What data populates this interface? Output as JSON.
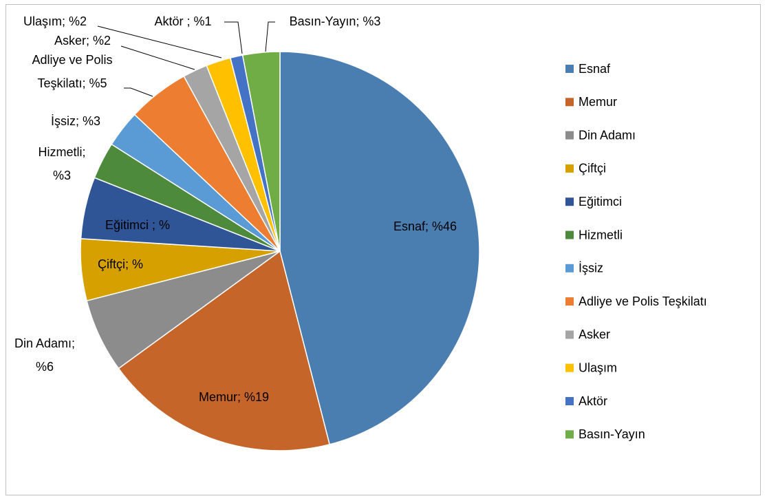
{
  "chart_data": {
    "type": "pie",
    "categories": [
      "Esnaf",
      "Memur",
      "Din Adamı",
      "Çiftçi",
      "Eğitimci",
      "Hizmetli",
      "İşsiz",
      "Adliye ve Polis Teşkilatı",
      "Asker",
      "Ulaşım",
      "Aktör",
      "Basın-Yayın"
    ],
    "values": [
      46,
      19,
      6,
      5,
      5,
      3,
      3,
      5,
      2,
      2,
      1,
      3
    ],
    "value_labels": [
      [
        "Esnaf; %46"
      ],
      [
        "Memur; %19"
      ],
      [
        "Din Adamı;",
        "%6"
      ],
      [
        "Çiftçi; %"
      ],
      [
        "Eğitimci ; %"
      ],
      [
        "Hizmetli;",
        "%3"
      ],
      [
        "İşsiz; %3"
      ],
      [
        "Adliye ve Polis",
        "Teşkilatı; %5"
      ],
      [
        "Asker; %2"
      ],
      [
        "Ulaşım; %2"
      ],
      [
        "Aktör ; %1"
      ],
      [
        "Basın-Yayın; %3"
      ]
    ],
    "colors": [
      "#4a7eb1",
      "#c5652a",
      "#8c8c8c",
      "#d6a100",
      "#2f5597",
      "#4e8a3c",
      "#5b9bd5",
      "#ed7d31",
      "#a5a5a5",
      "#ffc000",
      "#4472c4",
      "#70ad47"
    ],
    "legend": "right"
  }
}
